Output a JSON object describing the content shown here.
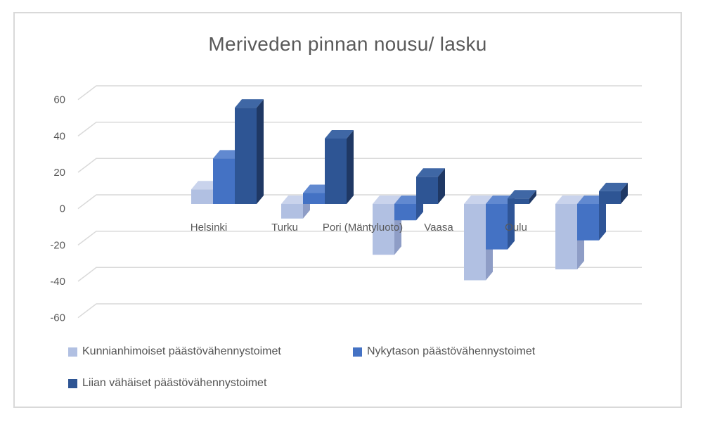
{
  "chart_data": {
    "type": "bar",
    "variant": "3d-clustered-column",
    "title": "Meriveden pinnan nousu/ lasku",
    "categories": [
      "Helsinki",
      "Turku",
      "Pori (Mäntyluoto)",
      "Vaasa",
      "Oulu"
    ],
    "series": [
      {
        "name": "Kunnianhimoiset päästövähennystoimet",
        "values": [
          8,
          -8,
          -28,
          -42,
          -36
        ],
        "color": "#b1c0e2",
        "color_top": "#c9d3ec",
        "color_side": "#8e9dc6"
      },
      {
        "name": "Nykytason päästövähennystoimet",
        "values": [
          25,
          6,
          -9,
          -25,
          -20
        ],
        "color": "#4472c4",
        "color_top": "#6189d0",
        "color_side": "#2f5597"
      },
      {
        "name": "Liian vähäiset päästövähennystoimet",
        "values": [
          53,
          36,
          15,
          3,
          7
        ],
        "color": "#2e5594",
        "color_top": "#3f67a5",
        "color_side": "#1f3864"
      }
    ],
    "ylim": [
      -60,
      60
    ],
    "yticks": [
      60,
      40,
      20,
      0,
      -20,
      -40,
      -60
    ],
    "grid": true,
    "legend_position": "bottom",
    "axis_text_color": "#595959",
    "category_text_color": "#595959",
    "gridline_color": "#d9d9d9",
    "frame_border_color": "#d9d9d9"
  }
}
